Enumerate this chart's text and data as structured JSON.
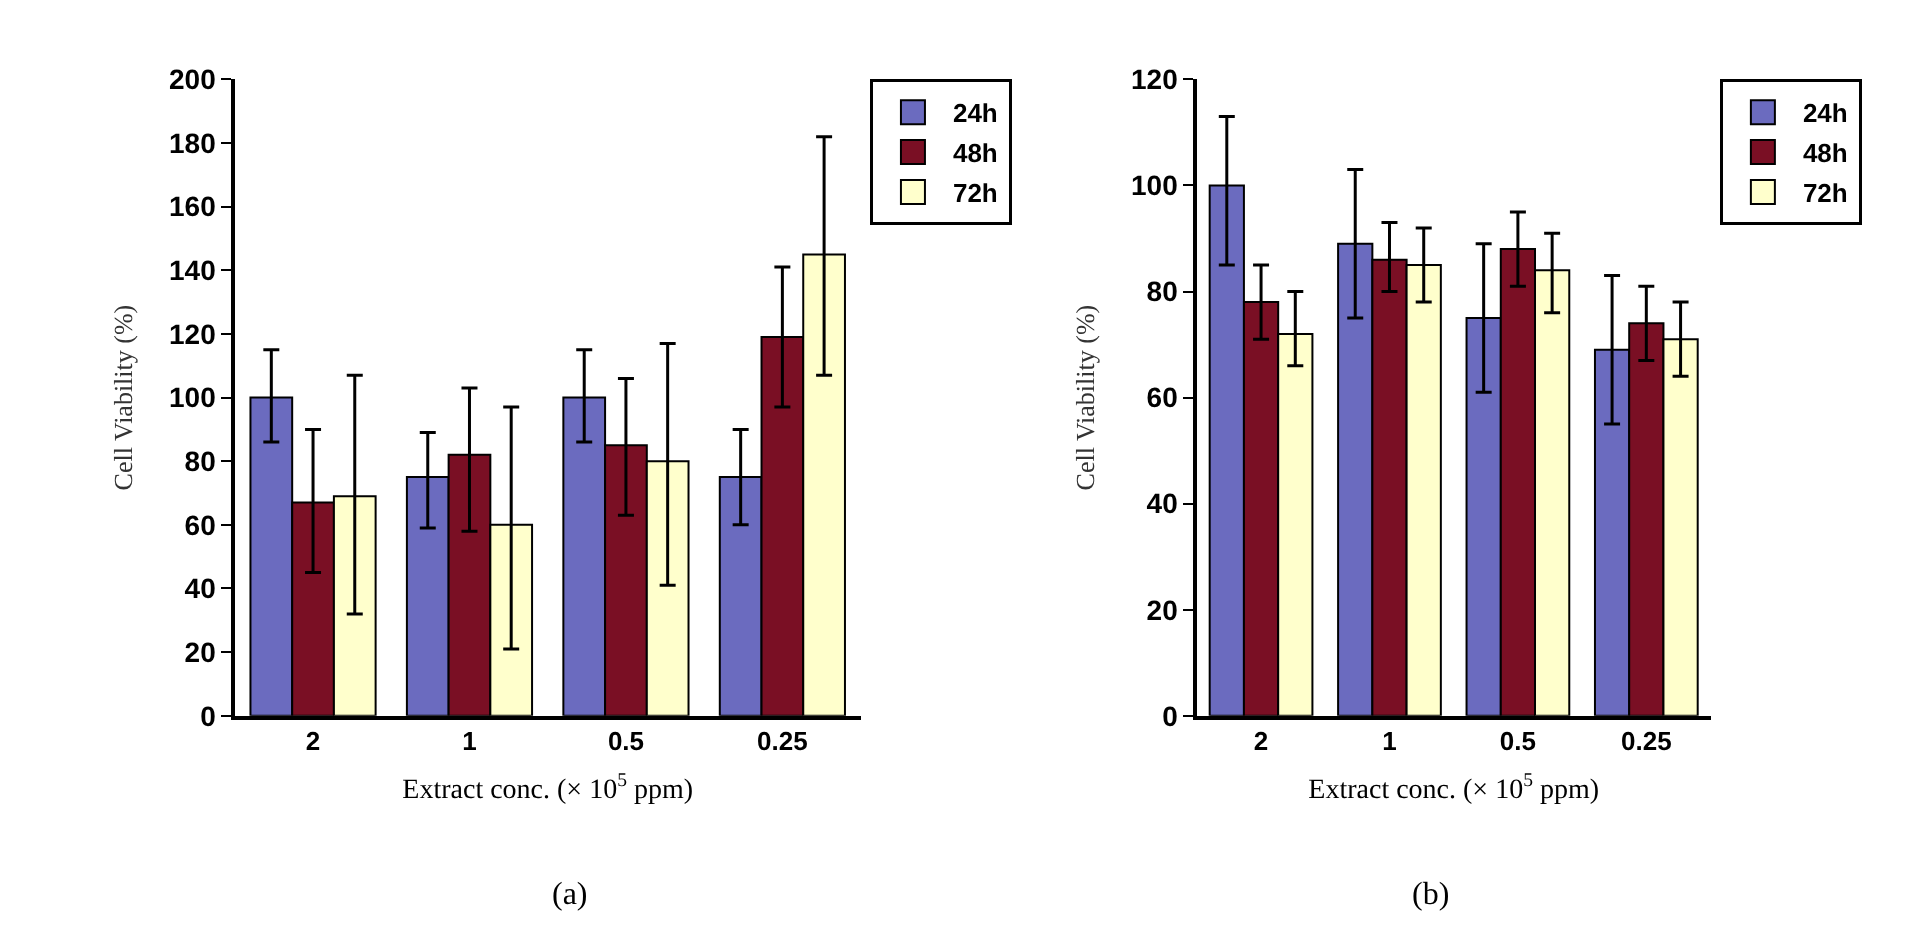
{
  "chart_data": [
    {
      "type": "bar",
      "xlabel": "Extract conc. (× 10$^{5}$ ppm)",
      "ylabel": "Cell Viability (%)",
      "annotations": [
        "(a)"
      ],
      "categories": [
        "2",
        "1",
        "0.5",
        "0.25"
      ],
      "ylim": [
        0,
        200
      ],
      "yticks": [
        0,
        20,
        40,
        60,
        80,
        100,
        120,
        140,
        160,
        180,
        200
      ],
      "legend": "top right",
      "series": [
        {
          "name": "24h",
          "color": "#6b6bbf",
          "values": [
            100,
            75,
            100,
            75
          ],
          "errors": [
            [
              86,
              115
            ],
            [
              59,
              89
            ],
            [
              86,
              115
            ],
            [
              60,
              90
            ]
          ]
        },
        {
          "name": "48h",
          "color": "#7a0f24",
          "values": [
            67,
            82,
            85,
            119
          ],
          "errors": [
            [
              45,
              90
            ],
            [
              58,
              103
            ],
            [
              63,
              106
            ],
            [
              97,
              141
            ]
          ]
        },
        {
          "name": "72h",
          "color": "#ffffcc",
          "values": [
            69,
            60,
            80,
            145
          ],
          "errors": [
            [
              32,
              107
            ],
            [
              21,
              97
            ],
            [
              41,
              117
            ],
            [
              107,
              182
            ]
          ]
        }
      ]
    },
    {
      "type": "bar",
      "xlabel": "Extract conc. (× 10$^{5}$ ppm)",
      "ylabel": "Cell Viability (%)",
      "annotations": [
        "(b)"
      ],
      "categories": [
        "2",
        "1",
        "0.5",
        "0.25"
      ],
      "ylim": [
        0,
        120
      ],
      "yticks": [
        0,
        20,
        40,
        60,
        80,
        100,
        120
      ],
      "legend": "top right",
      "series": [
        {
          "name": "24h",
          "color": "#6b6bbf",
          "values": [
            100,
            89,
            75,
            69
          ],
          "errors": [
            [
              85,
              113
            ],
            [
              75,
              103
            ],
            [
              61,
              89
            ],
            [
              55,
              83
            ]
          ]
        },
        {
          "name": "48h",
          "color": "#7a0f24",
          "values": [
            78,
            86,
            88,
            74
          ],
          "errors": [
            [
              71,
              85
            ],
            [
              80,
              93
            ],
            [
              81,
              95
            ],
            [
              67,
              81
            ]
          ]
        },
        {
          "name": "72h",
          "color": "#ffffcc",
          "values": [
            72,
            85,
            84,
            71
          ],
          "errors": [
            [
              66,
              80
            ],
            [
              78,
              92
            ],
            [
              76,
              91
            ],
            [
              64,
              78
            ]
          ]
        }
      ]
    }
  ]
}
